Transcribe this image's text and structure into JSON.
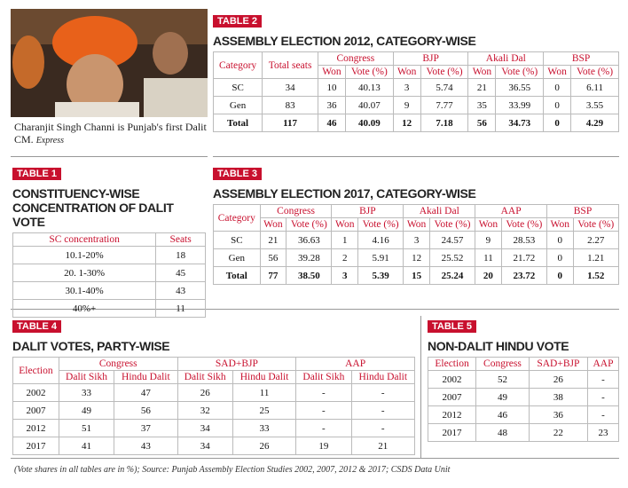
{
  "photo": {
    "caption": "Charanjit Singh Channi is Punjab's first Dalit CM.",
    "credit": "Express"
  },
  "table2": {
    "label": "TABLE 2",
    "title": "ASSEMBLY ELECTION 2012, CATEGORY-WISE",
    "header": [
      "Category",
      "Total seats",
      "Congress",
      "BJP",
      "Akali Dal",
      "BSP"
    ],
    "subheader": [
      "Won",
      "Vote (%)",
      "Won",
      "Vote (%)",
      "Won",
      "Vote (%)",
      "Won",
      "Vote (%)"
    ],
    "rows": [
      [
        "SC",
        "34",
        "10",
        "40.13",
        "3",
        "5.74",
        "21",
        "36.55",
        "0",
        "6.11"
      ],
      [
        "Gen",
        "83",
        "36",
        "40.07",
        "9",
        "7.77",
        "35",
        "33.99",
        "0",
        "3.55"
      ],
      [
        "Total",
        "117",
        "46",
        "40.09",
        "12",
        "7.18",
        "56",
        "34.73",
        "0",
        "4.29"
      ]
    ]
  },
  "table1": {
    "label": "TABLE 1",
    "title": "CONSTITUENCY-WISE CONCENTRATION OF DALIT VOTE",
    "header": [
      "SC concentration",
      "Seats"
    ],
    "rows": [
      [
        "10.1-20%",
        "18"
      ],
      [
        "20. 1-30%",
        "45"
      ],
      [
        "30.1-40%",
        "43"
      ],
      [
        "40%+",
        "11"
      ]
    ]
  },
  "table3": {
    "label": "TABLE 3",
    "title": "ASSEMBLY ELECTION 2017, CATEGORY-WISE",
    "header": [
      "Category",
      "Congress",
      "BJP",
      "Akali Dal",
      "AAP",
      "BSP"
    ],
    "subheader": [
      "Won",
      "Vote (%)",
      "Won",
      "Vote (%)",
      "Won",
      "Vote (%)",
      "Won",
      "Vote (%)",
      "Won",
      "Vote (%)"
    ],
    "rows": [
      [
        "SC",
        "21",
        "36.63",
        "1",
        "4.16",
        "3",
        "24.57",
        "9",
        "28.53",
        "0",
        "2.27"
      ],
      [
        "Gen",
        "56",
        "39.28",
        "2",
        "5.91",
        "12",
        "25.52",
        "11",
        "21.72",
        "0",
        "1.21"
      ],
      [
        "Total",
        "77",
        "38.50",
        "3",
        "5.39",
        "15",
        "25.24",
        "20",
        "23.72",
        "0",
        "1.52"
      ]
    ]
  },
  "table4": {
    "label": "TABLE 4",
    "title": "DALIT VOTES, PARTY-WISE",
    "header": [
      "Election",
      "Congress",
      "SAD+BJP",
      "AAP"
    ],
    "subheader": [
      "Dalit Sikh",
      "Hindu Dalit",
      "Dalit Sikh",
      "Hindu Dalit",
      "Dalit Sikh",
      "Hindu Dalit"
    ],
    "rows": [
      [
        "2002",
        "33",
        "47",
        "26",
        "11",
        "-",
        "-"
      ],
      [
        "2007",
        "49",
        "56",
        "32",
        "25",
        "-",
        "-"
      ],
      [
        "2012",
        "51",
        "37",
        "34",
        "33",
        "-",
        "-"
      ],
      [
        "2017",
        "41",
        "43",
        "34",
        "26",
        "19",
        "21"
      ]
    ]
  },
  "table5": {
    "label": "TABLE 5",
    "title": "NON-DALIT HINDU VOTE",
    "header": [
      "Election",
      "Congress",
      "SAD+BJP",
      "AAP"
    ],
    "rows": [
      [
        "2002",
        "52",
        "26",
        "-"
      ],
      [
        "2007",
        "49",
        "38",
        "-"
      ],
      [
        "2012",
        "46",
        "36",
        "-"
      ],
      [
        "2017",
        "48",
        "22",
        "23"
      ]
    ]
  },
  "footnote": "(Vote shares in all tables are in %); Source: Punjab Assembly Election Studies 2002, 2007, 2012 & 2017; CSDS Data Unit"
}
